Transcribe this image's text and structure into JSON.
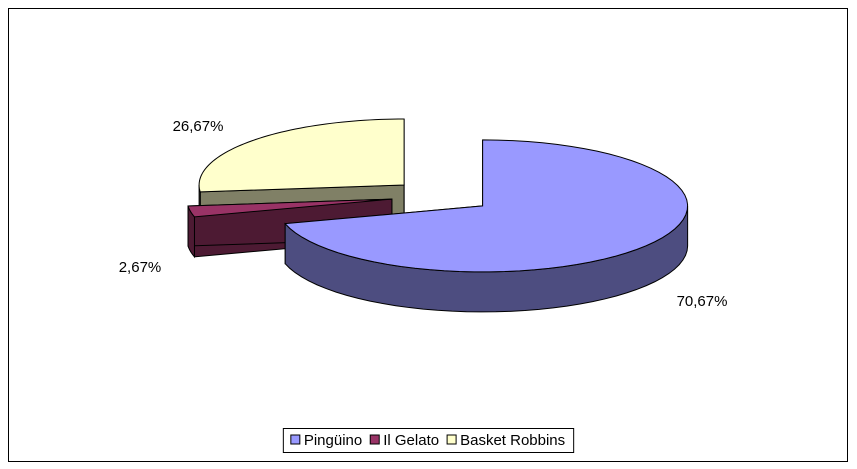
{
  "chart_data": {
    "type": "pie3d",
    "categories": [
      "Pingüino",
      "Il Gelato",
      "Basket Robbins"
    ],
    "values": [
      70.67,
      2.67,
      26.67
    ],
    "value_labels": [
      "70,67%",
      "2,67%",
      "26,67%"
    ],
    "colors": [
      "#9999ff",
      "#993366",
      "#ffffcc"
    ],
    "legend": "bottom"
  }
}
